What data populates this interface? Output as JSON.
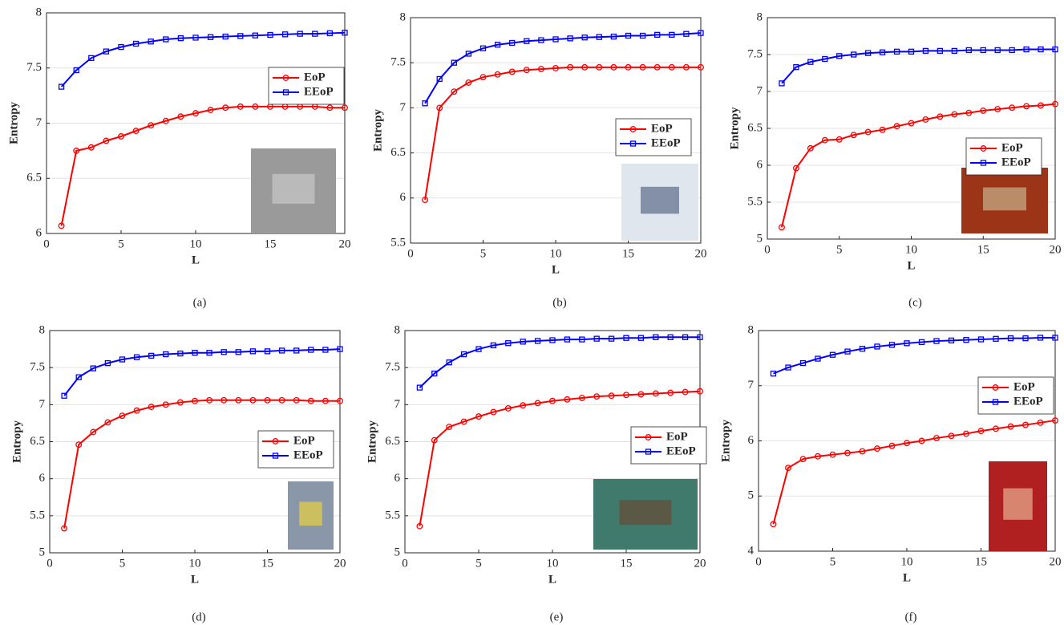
{
  "chart_data": [
    {
      "type": "line",
      "caption": "(a)",
      "x_label": "L",
      "y_label": "Entropy",
      "x": [
        1,
        2,
        3,
        4,
        5,
        6,
        7,
        8,
        9,
        10,
        11,
        12,
        13,
        14,
        15,
        16,
        17,
        18,
        19,
        20
      ],
      "xlim": [
        0,
        20
      ],
      "xticks": [
        0,
        5,
        10,
        15,
        20
      ],
      "ylim": [
        6,
        8
      ],
      "yticks": [
        6,
        6.5,
        7,
        7.5,
        8
      ],
      "grid": true,
      "series": [
        {
          "name": "EoP",
          "color": "#ff0000",
          "marker": "circle",
          "values": [
            6.07,
            6.75,
            6.78,
            6.84,
            6.88,
            6.93,
            6.98,
            7.02,
            7.06,
            7.09,
            7.12,
            7.14,
            7.15,
            7.15,
            7.15,
            7.15,
            7.15,
            7.15,
            7.14,
            7.14
          ]
        },
        {
          "name": "EEoP",
          "color": "#0000ff",
          "marker": "square",
          "values": [
            7.33,
            7.48,
            7.59,
            7.65,
            7.69,
            7.72,
            7.74,
            7.76,
            7.77,
            7.775,
            7.78,
            7.785,
            7.79,
            7.795,
            7.8,
            7.805,
            7.81,
            7.81,
            7.815,
            7.82
          ]
        }
      ]
    },
    {
      "type": "line",
      "caption": "(b)",
      "x_label": "L",
      "y_label": "Entropy",
      "x": [
        1,
        2,
        3,
        4,
        5,
        6,
        7,
        8,
        9,
        10,
        11,
        12,
        13,
        14,
        15,
        16,
        17,
        18,
        19,
        20
      ],
      "xlim": [
        0,
        20
      ],
      "xticks": [
        0,
        5,
        10,
        15,
        20
      ],
      "ylim": [
        5.5,
        8
      ],
      "yticks": [
        5.5,
        6,
        6.5,
        7,
        7.5,
        8
      ],
      "grid": true,
      "series": [
        {
          "name": "EoP",
          "color": "#ff0000",
          "marker": "circle",
          "values": [
            5.98,
            7.0,
            7.18,
            7.28,
            7.34,
            7.37,
            7.4,
            7.42,
            7.43,
            7.44,
            7.45,
            7.45,
            7.45,
            7.45,
            7.45,
            7.45,
            7.45,
            7.45,
            7.45,
            7.45
          ]
        },
        {
          "name": "EEoP",
          "color": "#0000ff",
          "marker": "square",
          "values": [
            7.05,
            7.32,
            7.5,
            7.6,
            7.66,
            7.7,
            7.72,
            7.74,
            7.75,
            7.76,
            7.77,
            7.78,
            7.785,
            7.79,
            7.8,
            7.8,
            7.81,
            7.81,
            7.82,
            7.83
          ]
        }
      ]
    },
    {
      "type": "line",
      "caption": "(c)",
      "x_label": "L",
      "y_label": "Entropy",
      "x": [
        1,
        2,
        3,
        4,
        5,
        6,
        7,
        8,
        9,
        10,
        11,
        12,
        13,
        14,
        15,
        16,
        17,
        18,
        19,
        20
      ],
      "xlim": [
        0,
        20
      ],
      "xticks": [
        0,
        5,
        10,
        15,
        20
      ],
      "ylim": [
        5,
        8
      ],
      "yticks": [
        5,
        5.5,
        6,
        6.5,
        7,
        7.5,
        8
      ],
      "grid": true,
      "series": [
        {
          "name": "EoP",
          "color": "#ff0000",
          "marker": "circle",
          "values": [
            5.16,
            5.96,
            6.23,
            6.34,
            6.35,
            6.41,
            6.45,
            6.48,
            6.53,
            6.57,
            6.62,
            6.66,
            6.69,
            6.71,
            6.74,
            6.76,
            6.78,
            6.8,
            6.81,
            6.83
          ]
        },
        {
          "name": "EEoP",
          "color": "#0000ff",
          "marker": "square",
          "values": [
            7.11,
            7.33,
            7.4,
            7.44,
            7.48,
            7.5,
            7.52,
            7.53,
            7.54,
            7.54,
            7.55,
            7.55,
            7.55,
            7.56,
            7.56,
            7.56,
            7.56,
            7.57,
            7.57,
            7.57
          ]
        }
      ]
    },
    {
      "type": "line",
      "caption": "(d)",
      "x_label": "L",
      "y_label": "Entropy",
      "x": [
        1,
        2,
        3,
        4,
        5,
        6,
        7,
        8,
        9,
        10,
        11,
        12,
        13,
        14,
        15,
        16,
        17,
        18,
        19,
        20
      ],
      "xlim": [
        0,
        20
      ],
      "xticks": [
        0,
        5,
        10,
        15,
        20
      ],
      "ylim": [
        5,
        8
      ],
      "yticks": [
        5,
        5.5,
        6,
        6.5,
        7,
        7.5,
        8
      ],
      "grid": true,
      "series": [
        {
          "name": "EoP",
          "color": "#ff0000",
          "marker": "circle",
          "values": [
            5.33,
            6.46,
            6.63,
            6.76,
            6.85,
            6.92,
            6.97,
            7.0,
            7.03,
            7.05,
            7.06,
            7.06,
            7.06,
            7.06,
            7.06,
            7.06,
            7.06,
            7.05,
            7.05,
            7.05
          ]
        },
        {
          "name": "EEoP",
          "color": "#0000ff",
          "marker": "square",
          "values": [
            7.12,
            7.37,
            7.49,
            7.56,
            7.61,
            7.64,
            7.66,
            7.68,
            7.69,
            7.7,
            7.7,
            7.71,
            7.71,
            7.72,
            7.72,
            7.73,
            7.73,
            7.74,
            7.74,
            7.75
          ]
        }
      ]
    },
    {
      "type": "line",
      "caption": "(e)",
      "x_label": "L",
      "y_label": "Entropy",
      "x": [
        1,
        2,
        3,
        4,
        5,
        6,
        7,
        8,
        9,
        10,
        11,
        12,
        13,
        14,
        15,
        16,
        17,
        18,
        19,
        20
      ],
      "xlim": [
        0,
        20
      ],
      "xticks": [
        0,
        5,
        10,
        15,
        20
      ],
      "ylim": [
        5,
        8
      ],
      "yticks": [
        5,
        5.5,
        6,
        6.5,
        7,
        7.5,
        8
      ],
      "grid": true,
      "series": [
        {
          "name": "EoP",
          "color": "#ff0000",
          "marker": "circle",
          "values": [
            5.36,
            6.52,
            6.7,
            6.77,
            6.84,
            6.9,
            6.95,
            6.99,
            7.02,
            7.05,
            7.07,
            7.09,
            7.11,
            7.12,
            7.13,
            7.14,
            7.15,
            7.16,
            7.17,
            7.18
          ]
        },
        {
          "name": "EEoP",
          "color": "#0000ff",
          "marker": "square",
          "values": [
            7.23,
            7.42,
            7.57,
            7.68,
            7.75,
            7.8,
            7.83,
            7.85,
            7.86,
            7.87,
            7.88,
            7.88,
            7.89,
            7.89,
            7.9,
            7.9,
            7.91,
            7.91,
            7.91,
            7.91
          ]
        }
      ]
    },
    {
      "type": "line",
      "caption": "(f)",
      "x_label": "L",
      "y_label": "Entropy",
      "x": [
        1,
        2,
        3,
        4,
        5,
        6,
        7,
        8,
        9,
        10,
        11,
        12,
        13,
        14,
        15,
        16,
        17,
        18,
        19,
        20
      ],
      "xlim": [
        0,
        20
      ],
      "xticks": [
        0,
        5,
        10,
        15,
        20
      ],
      "ylim": [
        4,
        8
      ],
      "yticks": [
        4,
        5,
        6,
        7,
        8
      ],
      "grid": true,
      "series": [
        {
          "name": "EoP",
          "color": "#ff0000",
          "marker": "circle",
          "values": [
            4.49,
            5.51,
            5.67,
            5.72,
            5.75,
            5.78,
            5.81,
            5.86,
            5.91,
            5.96,
            6.0,
            6.05,
            6.09,
            6.13,
            6.18,
            6.22,
            6.26,
            6.29,
            6.33,
            6.37
          ]
        },
        {
          "name": "EEoP",
          "color": "#0000ff",
          "marker": "square",
          "values": [
            7.22,
            7.33,
            7.41,
            7.49,
            7.56,
            7.62,
            7.67,
            7.71,
            7.74,
            7.77,
            7.79,
            7.81,
            7.82,
            7.83,
            7.84,
            7.85,
            7.86,
            7.86,
            7.87,
            7.87
          ]
        }
      ]
    }
  ]
}
